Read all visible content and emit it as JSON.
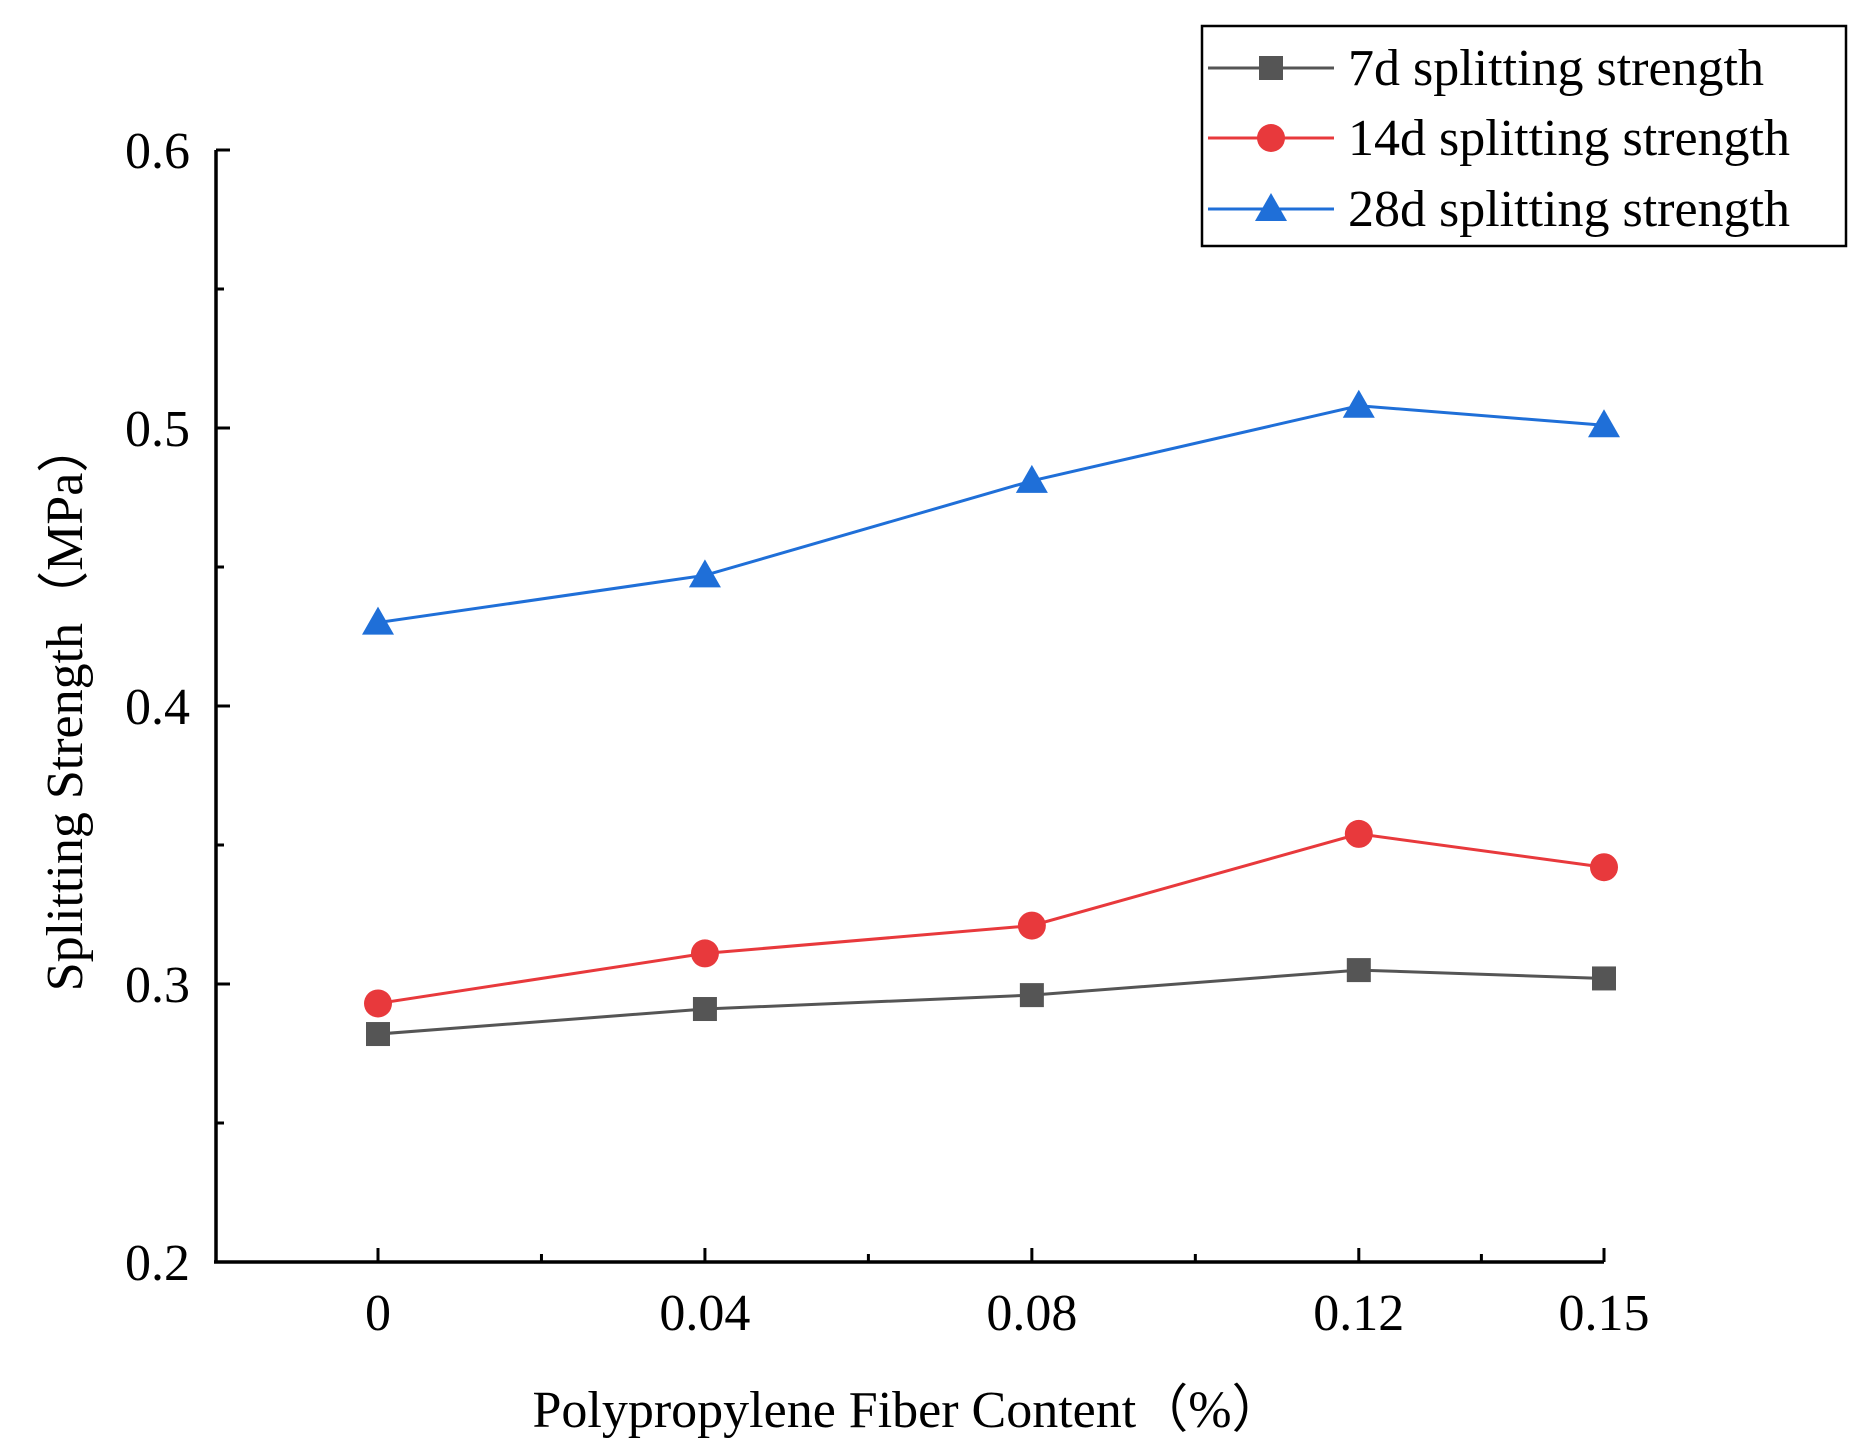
{
  "chart_data": {
    "type": "line",
    "title": "",
    "xlabel": "Polypropylene Fiber Content（%）",
    "ylabel": "Splitting Strength（MPa）",
    "x": [
      0,
      0.04,
      0.08,
      0.12,
      0.15
    ],
    "x_tick_labels": [
      "0",
      "0.04",
      "0.08",
      "0.12",
      "0.15"
    ],
    "xlim": [
      -0.02,
      0.15
    ],
    "ylim": [
      0.2,
      0.6
    ],
    "y_ticks": [
      0.2,
      0.3,
      0.4,
      0.5,
      0.6
    ],
    "y_tick_labels": [
      "0.2",
      "0.3",
      "0.4",
      "0.5",
      "0.6"
    ],
    "y_minor_ticks": [
      0.25,
      0.35,
      0.45,
      0.55
    ],
    "x_minor_ticks": [
      0.02,
      0.06,
      0.1,
      0.135
    ],
    "grid": false,
    "legend_position": "top-right",
    "series": [
      {
        "name": "7d splitting strength",
        "marker": "square",
        "color": "#555555",
        "values": [
          0.282,
          0.291,
          0.296,
          0.305,
          0.302
        ]
      },
      {
        "name": "14d splitting strength",
        "marker": "circle",
        "color": "#e8393c",
        "values": [
          0.293,
          0.311,
          0.321,
          0.354,
          0.342
        ]
      },
      {
        "name": "28d splitting strength",
        "marker": "triangle",
        "color": "#1f6fd8",
        "values": [
          0.43,
          0.447,
          0.481,
          0.508,
          0.501
        ]
      }
    ]
  }
}
